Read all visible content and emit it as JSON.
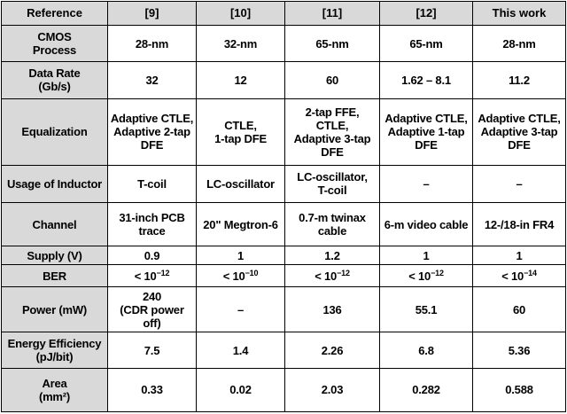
{
  "table": {
    "header": [
      "Reference",
      "[9]",
      "[10]",
      "[11]",
      "[12]",
      "This work"
    ],
    "rows": [
      {
        "label": "CMOS\nProcess",
        "cells": [
          "28-nm",
          "32-nm",
          "65-nm",
          "65-nm",
          "28-nm"
        ]
      },
      {
        "label": "Data Rate\n(Gb/s)",
        "cells": [
          "32",
          "12",
          "60",
          "1.62 – 8.1",
          "11.2"
        ]
      },
      {
        "label": "Equalization",
        "cells": [
          "Adaptive CTLE,\nAdaptive 2-tap\nDFE",
          "CTLE,\n1-tap DFE",
          "2-tap FFE,\nCTLE,\nAdaptive 3-tap\nDFE",
          "Adaptive CTLE,\nAdaptive 1-tap\nDFE",
          "Adaptive CTLE,\nAdaptive 3-tap\nDFE"
        ]
      },
      {
        "label": "Usage of Inductor",
        "cells": [
          "T-coil",
          "LC-oscillator",
          "LC-oscillator,\nT-coil",
          "–",
          "–"
        ]
      },
      {
        "label": "Channel",
        "cells": [
          "31-inch PCB\ntrace",
          "20\" Megtron-6",
          "0.7-m twinax\ncable",
          "6-m video cable",
          "12-/18-in FR4"
        ]
      },
      {
        "label": "Supply (V)",
        "cells": [
          "0.9",
          "1",
          "1.2",
          "1",
          "1"
        ]
      },
      {
        "label": "BER",
        "cells": [
          "< 10−12",
          "< 10−10",
          "< 10−12",
          "< 10−12",
          "< 10−14"
        ]
      },
      {
        "label": "Power (mW)",
        "cells": [
          "240\n(CDR power off)",
          "–",
          "136",
          "55.1",
          "60"
        ]
      },
      {
        "label": "Energy Efficiency\n(pJ/bit)",
        "cells": [
          "7.5",
          "1.4",
          "2.26",
          "6.8",
          "5.36"
        ]
      },
      {
        "label": "Area\n(mm²)",
        "cells": [
          "0.33",
          "0.02",
          "2.03",
          "0.282",
          "0.588"
        ]
      }
    ]
  },
  "colors": {
    "header_bg": "#d9d9d9",
    "border": "#000000",
    "text": "#000000"
  }
}
